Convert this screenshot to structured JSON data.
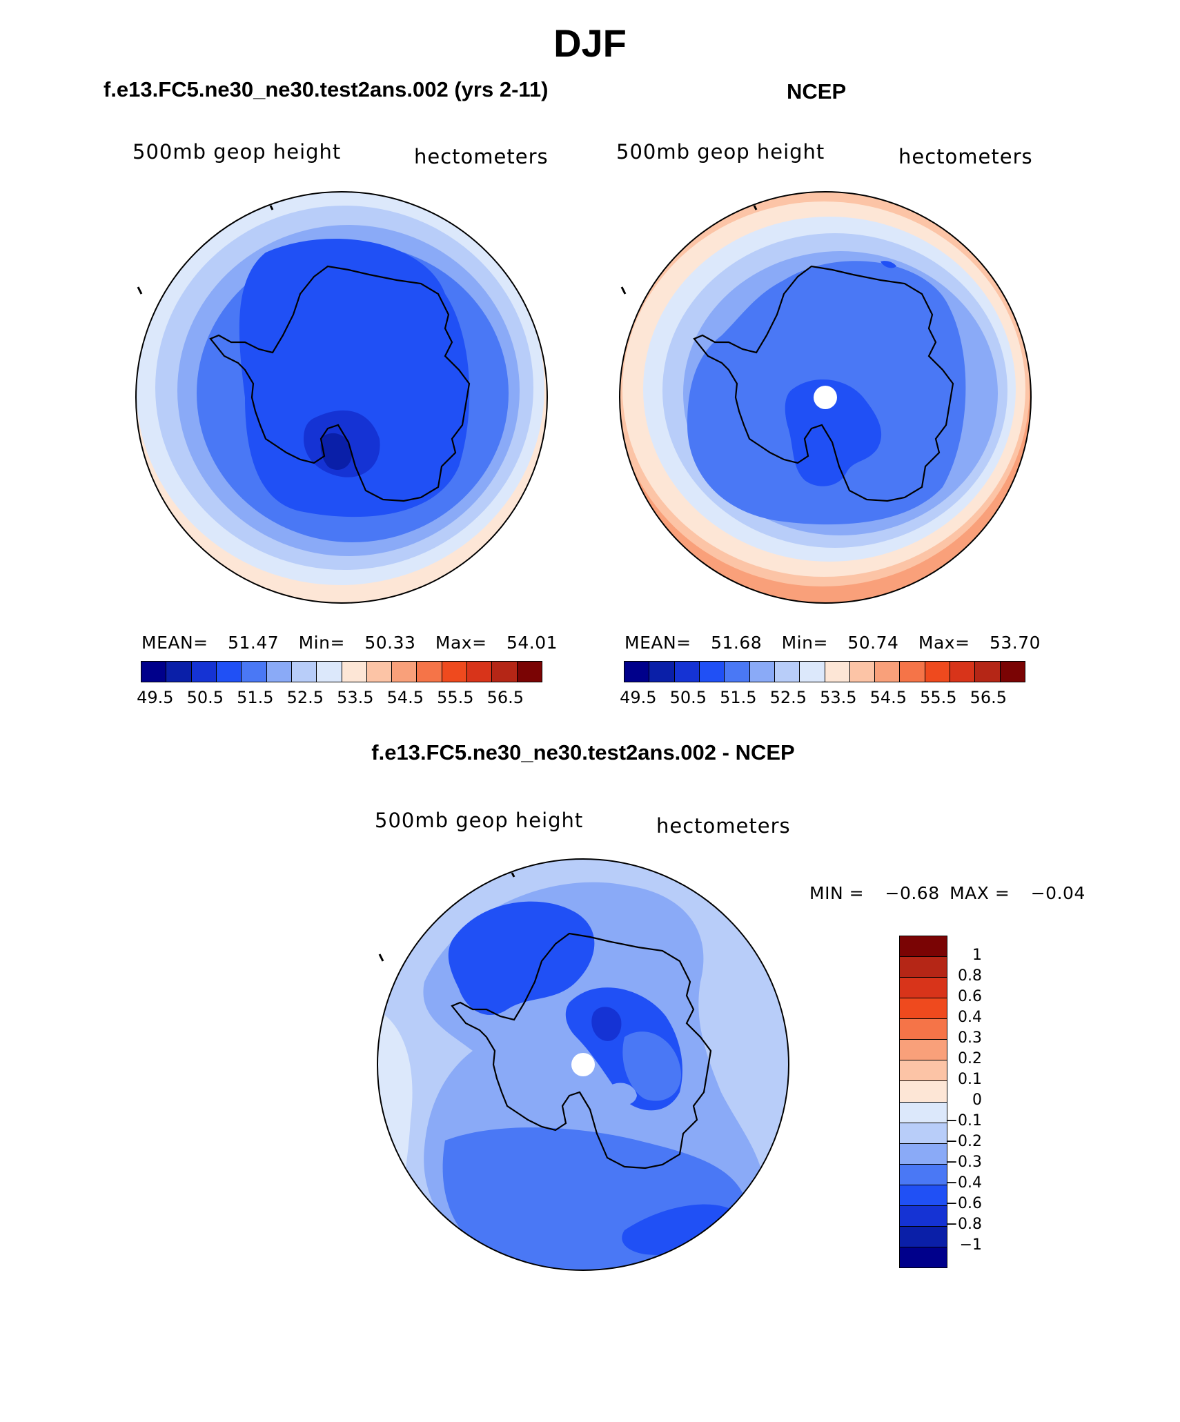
{
  "figure": {
    "title": "DJF"
  },
  "panels": {
    "model": {
      "title": "f.e13.FC5.ne30_ne30.test2ans.002 (yrs 2-11)",
      "variable": "500mb geop height",
      "units": "hectometers",
      "stats": {
        "mean_label": "MEAN=",
        "mean": "51.47",
        "min_label": "Min=",
        "min": "50.33",
        "max_label": "Max=",
        "max": "54.01"
      }
    },
    "obs": {
      "title": "NCEP",
      "variable": "500mb geop height",
      "units": "hectometers",
      "stats": {
        "mean_label": "MEAN=",
        "mean": "51.68",
        "min_label": "Min=",
        "min": "50.74",
        "max_label": "Max=",
        "max": "53.70"
      }
    },
    "diff": {
      "title": "f.e13.FC5.ne30_ne30.test2ans.002 - NCEP",
      "variable": "500mb geop height",
      "units": "hectometers",
      "stats": {
        "min_label": "MIN =",
        "min": "−0.68",
        "max_label": "MAX =",
        "max": "−0.04"
      }
    }
  },
  "colorbars": {
    "height": {
      "colors": [
        "#00008b",
        "#0a1fa8",
        "#1533d4",
        "#2050f5",
        "#4a78f5",
        "#8aaaf7",
        "#b8cdf9",
        "#dce8fb",
        "#fde6d6",
        "#fcc4a6",
        "#f9a07a",
        "#f57448",
        "#ef4a1e",
        "#d8341a",
        "#b52616",
        "#7a0404"
      ],
      "labels": [
        "49.5",
        "50.5",
        "51.5",
        "52.5",
        "53.5",
        "54.5",
        "55.5",
        "56.5"
      ]
    },
    "diff": {
      "colors_top_to_bottom": [
        "#7a0404",
        "#b52616",
        "#d8341a",
        "#ef4a1e",
        "#f57448",
        "#f9a07a",
        "#fcc4a6",
        "#fde6d6",
        "#dce8fb",
        "#b8cdf9",
        "#8aaaf7",
        "#4a78f5",
        "#2050f5",
        "#1533d4",
        "#0a1fa8",
        "#00008b"
      ],
      "labels_top_to_bottom": [
        "1",
        "0.8",
        "0.6",
        "0.4",
        "0.3",
        "0.2",
        "0.1",
        "0",
        "−0.1",
        "−0.2",
        "−0.3",
        "−0.4",
        "−0.6",
        "−0.8",
        "−1"
      ]
    }
  },
  "map_colors": {
    "peach": "#fde6d6",
    "salmon": "#fcc4a6",
    "pale_blue": "#dce8fb",
    "light_blue": "#b8cdf9",
    "mid_blue": "#8aaaf7",
    "blue": "#4a78f5",
    "bright_blue": "#2050f5",
    "dark_blue": "#1533d4",
    "navy": "#0a1fa8"
  }
}
